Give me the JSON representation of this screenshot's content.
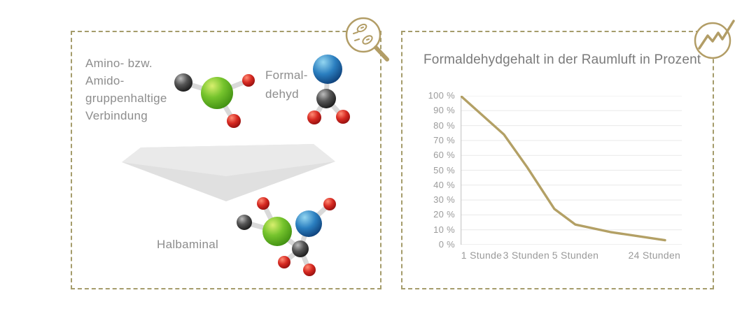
{
  "page": {
    "background": "#ffffff"
  },
  "colors": {
    "accent_gold": "#b29d66",
    "panel_border_olive": "#a59c6b",
    "body_text_gray": "#8d8d8d",
    "title_gray": "#7a7a7a",
    "axis_label_gray": "#9a9a9a",
    "gridline_gray": "#e9e9e9",
    "arrow_gray": "#e3e3e3",
    "atom_green": "#76c42d",
    "atom_blue": "#2b7fc0",
    "atom_red": "#d62921",
    "atom_dark": "#4a4a4a"
  },
  "left_panel": {
    "reactant_lines": [
      "Amino- bzw.",
      "Amido-",
      "gruppenhaltige",
      "Verbindung"
    ],
    "formaldehyd_lines": [
      "Formal-",
      "dehyd"
    ],
    "product_label": "Halbaminal",
    "icon": "magnifier-germs-icon"
  },
  "right_panel": {
    "icon": "trend-chart-icon"
  },
  "chart_data": {
    "type": "line",
    "title": "Formaldehydgehalt in der Raumluft in Prozent",
    "xlabel": "",
    "ylabel": "",
    "ylim": [
      0,
      100
    ],
    "grid": true,
    "legend": "none",
    "line_color": "#b3a065",
    "y_ticks": [
      "100 %",
      "90 %",
      "80 %",
      "70 %",
      "60 %",
      "50 %",
      "40 %",
      "30 %",
      "20 %",
      "10 %",
      "0 %"
    ],
    "x_labels": [
      {
        "label": "1 Stunde",
        "pos": 0.095
      },
      {
        "label": "3 Stunden",
        "pos": 0.297
      },
      {
        "label": "5 Stunden",
        "pos": 0.519
      },
      {
        "label": "24 Stunden",
        "pos": 0.876
      }
    ],
    "readings_at_labels": [
      {
        "label": "1 Stunde",
        "value_pct": 88
      },
      {
        "label": "3 Stunden",
        "value_pct": 52
      },
      {
        "label": "5 Stunden",
        "value_pct": 13.5
      },
      {
        "label": "24 Stunden",
        "value_pct": 3.5
      }
    ],
    "series": [
      {
        "name": "Formaldehydgehalt",
        "points": [
          {
            "x": 0.0,
            "y": 100
          },
          {
            "x": 0.196,
            "y": 74
          },
          {
            "x": 0.301,
            "y": 52
          },
          {
            "x": 0.424,
            "y": 24
          },
          {
            "x": 0.519,
            "y": 13.5
          },
          {
            "x": 0.677,
            "y": 8.5
          },
          {
            "x": 0.924,
            "y": 3
          }
        ]
      }
    ]
  }
}
